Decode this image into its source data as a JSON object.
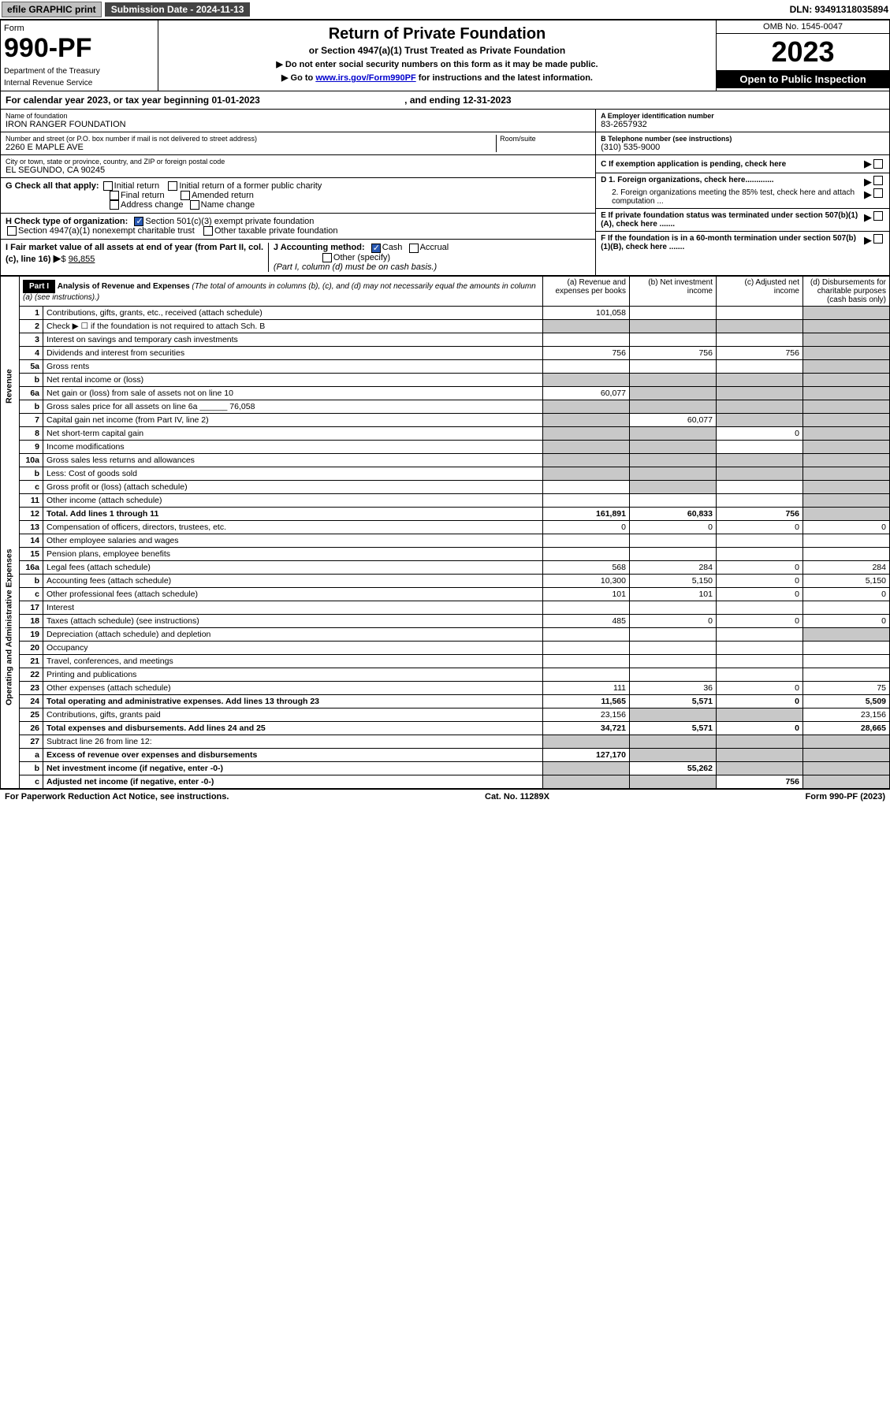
{
  "topbar": {
    "efile": "efile GRAPHIC print",
    "submission": "Submission Date - 2024-11-13",
    "dln": "DLN: 93491318035894"
  },
  "header": {
    "form_label": "Form",
    "form_num": "990-PF",
    "dept1": "Department of the Treasury",
    "dept2": "Internal Revenue Service",
    "title": "Return of Private Foundation",
    "subtitle": "or Section 4947(a)(1) Trust Treated as Private Foundation",
    "bullet1": "▶ Do not enter social security numbers on this form as it may be made public.",
    "bullet2_pre": "▶ Go to ",
    "bullet2_link": "www.irs.gov/Form990PF",
    "bullet2_post": " for instructions and the latest information.",
    "omb": "OMB No. 1545-0047",
    "year": "2023",
    "open": "Open to Public Inspection"
  },
  "cal_year": {
    "pre": "For calendar year 2023, or tax year beginning 01-01-2023",
    "end": ", and ending 12-31-2023"
  },
  "info": {
    "name_lbl": "Name of foundation",
    "name": "IRON RANGER FOUNDATION",
    "addr_lbl": "Number and street (or P.O. box number if mail is not delivered to street address)",
    "addr": "2260 E MAPLE AVE",
    "room_lbl": "Room/suite",
    "city_lbl": "City or town, state or province, country, and ZIP or foreign postal code",
    "city": "EL SEGUNDO, CA  90245",
    "ein_lbl": "A Employer identification number",
    "ein": "83-2657932",
    "phone_lbl": "B Telephone number (see instructions)",
    "phone": "(310) 535-9000",
    "c_lbl": "C If exemption application is pending, check here",
    "d1": "D 1. Foreign organizations, check here.............",
    "d2": "2. Foreign organizations meeting the 85% test, check here and attach computation ...",
    "e_lbl": "E If private foundation status was terminated under section 507(b)(1)(A), check here .......",
    "f_lbl": "F If the foundation is in a 60-month termination under section 507(b)(1)(B), check here .......",
    "g_lbl": "G Check all that apply:",
    "g_initial": "Initial return",
    "g_initial_former": "Initial return of a former public charity",
    "g_final": "Final return",
    "g_amended": "Amended return",
    "g_address": "Address change",
    "g_name": "Name change",
    "h_lbl": "H Check type of organization:",
    "h_501c3": "Section 501(c)(3) exempt private foundation",
    "h_4947": "Section 4947(a)(1) nonexempt charitable trust",
    "h_other": "Other taxable private foundation",
    "i_lbl": "I Fair market value of all assets at end of year (from Part II, col. (c), line 16)",
    "i_val": "96,855",
    "j_lbl": "J Accounting method:",
    "j_cash": "Cash",
    "j_accrual": "Accrual",
    "j_other": "Other (specify)",
    "j_note": "(Part I, column (d) must be on cash basis.)"
  },
  "part1": {
    "label": "Part I",
    "title": "Analysis of Revenue and Expenses",
    "note": "(The total of amounts in columns (b), (c), and (d) may not necessarily equal the amounts in column (a) (see instructions).)",
    "col_a": "(a) Revenue and expenses per books",
    "col_b": "(b) Net investment income",
    "col_c": "(c) Adjusted net income",
    "col_d": "(d) Disbursements for charitable purposes (cash basis only)",
    "side_rev": "Revenue",
    "side_exp": "Operating and Administrative Expenses"
  },
  "rows": [
    {
      "n": "1",
      "desc": "Contributions, gifts, grants, etc., received (attach schedule)",
      "a": "101,058",
      "b": "",
      "c": "",
      "d": "",
      "d_shade": true
    },
    {
      "n": "2",
      "desc": "Check ▶ ☐ if the foundation is not required to attach Sch. B",
      "a": "",
      "b": "",
      "c": "",
      "d": "",
      "shade_all": true
    },
    {
      "n": "3",
      "desc": "Interest on savings and temporary cash investments",
      "a": "",
      "b": "",
      "c": "",
      "d": "",
      "d_shade": true
    },
    {
      "n": "4",
      "desc": "Dividends and interest from securities",
      "a": "756",
      "b": "756",
      "c": "756",
      "d": "",
      "d_shade": true
    },
    {
      "n": "5a",
      "desc": "Gross rents",
      "a": "",
      "b": "",
      "c": "",
      "d": "",
      "d_shade": true
    },
    {
      "n": "b",
      "desc": "Net rental income or (loss)",
      "a": "",
      "b": "",
      "c": "",
      "d": "",
      "shade_all": true
    },
    {
      "n": "6a",
      "desc": "Net gain or (loss) from sale of assets not on line 10",
      "a": "60,077",
      "b": "",
      "c": "",
      "d": "",
      "bcd_shade": true
    },
    {
      "n": "b",
      "desc": "Gross sales price for all assets on line 6a ______ 76,058",
      "a": "",
      "b": "",
      "c": "",
      "d": "",
      "shade_all": true
    },
    {
      "n": "7",
      "desc": "Capital gain net income (from Part IV, line 2)",
      "a": "",
      "b": "60,077",
      "c": "",
      "d": "",
      "a_shade": true,
      "cd_shade": true
    },
    {
      "n": "8",
      "desc": "Net short-term capital gain",
      "a": "",
      "b": "",
      "c": "0",
      "d": "",
      "ab_shade": true,
      "d_shade": true
    },
    {
      "n": "9",
      "desc": "Income modifications",
      "a": "",
      "b": "",
      "c": "",
      "d": "",
      "ab_shade": true,
      "d_shade": true
    },
    {
      "n": "10a",
      "desc": "Gross sales less returns and allowances",
      "a": "",
      "b": "",
      "c": "",
      "d": "",
      "shade_all": true
    },
    {
      "n": "b",
      "desc": "Less: Cost of goods sold",
      "a": "",
      "b": "",
      "c": "",
      "d": "",
      "shade_all": true
    },
    {
      "n": "c",
      "desc": "Gross profit or (loss) (attach schedule)",
      "a": "",
      "b": "",
      "c": "",
      "d": "",
      "b_shade": true,
      "d_shade": true
    },
    {
      "n": "11",
      "desc": "Other income (attach schedule)",
      "a": "",
      "b": "",
      "c": "",
      "d": "",
      "d_shade": true
    },
    {
      "n": "12",
      "desc": "Total. Add lines 1 through 11",
      "a": "161,891",
      "b": "60,833",
      "c": "756",
      "d": "",
      "bold": true,
      "d_shade": true
    },
    {
      "n": "13",
      "desc": "Compensation of officers, directors, trustees, etc.",
      "a": "0",
      "b": "0",
      "c": "0",
      "d": "0"
    },
    {
      "n": "14",
      "desc": "Other employee salaries and wages",
      "a": "",
      "b": "",
      "c": "",
      "d": ""
    },
    {
      "n": "15",
      "desc": "Pension plans, employee benefits",
      "a": "",
      "b": "",
      "c": "",
      "d": ""
    },
    {
      "n": "16a",
      "desc": "Legal fees (attach schedule)",
      "a": "568",
      "b": "284",
      "c": "0",
      "d": "284"
    },
    {
      "n": "b",
      "desc": "Accounting fees (attach schedule)",
      "a": "10,300",
      "b": "5,150",
      "c": "0",
      "d": "5,150"
    },
    {
      "n": "c",
      "desc": "Other professional fees (attach schedule)",
      "a": "101",
      "b": "101",
      "c": "0",
      "d": "0"
    },
    {
      "n": "17",
      "desc": "Interest",
      "a": "",
      "b": "",
      "c": "",
      "d": ""
    },
    {
      "n": "18",
      "desc": "Taxes (attach schedule) (see instructions)",
      "a": "485",
      "b": "0",
      "c": "0",
      "d": "0"
    },
    {
      "n": "19",
      "desc": "Depreciation (attach schedule) and depletion",
      "a": "",
      "b": "",
      "c": "",
      "d": "",
      "d_shade": true
    },
    {
      "n": "20",
      "desc": "Occupancy",
      "a": "",
      "b": "",
      "c": "",
      "d": ""
    },
    {
      "n": "21",
      "desc": "Travel, conferences, and meetings",
      "a": "",
      "b": "",
      "c": "",
      "d": ""
    },
    {
      "n": "22",
      "desc": "Printing and publications",
      "a": "",
      "b": "",
      "c": "",
      "d": ""
    },
    {
      "n": "23",
      "desc": "Other expenses (attach schedule)",
      "a": "111",
      "b": "36",
      "c": "0",
      "d": "75"
    },
    {
      "n": "24",
      "desc": "Total operating and administrative expenses. Add lines 13 through 23",
      "a": "11,565",
      "b": "5,571",
      "c": "0",
      "d": "5,509",
      "bold": true
    },
    {
      "n": "25",
      "desc": "Contributions, gifts, grants paid",
      "a": "23,156",
      "b": "",
      "c": "",
      "d": "23,156",
      "bc_shade": true
    },
    {
      "n": "26",
      "desc": "Total expenses and disbursements. Add lines 24 and 25",
      "a": "34,721",
      "b": "5,571",
      "c": "0",
      "d": "28,665",
      "bold": true
    },
    {
      "n": "27",
      "desc": "Subtract line 26 from line 12:",
      "a": "",
      "b": "",
      "c": "",
      "d": "",
      "shade_all": true
    },
    {
      "n": "a",
      "desc": "Excess of revenue over expenses and disbursements",
      "a": "127,170",
      "b": "",
      "c": "",
      "d": "",
      "bold": true,
      "bcd_shade": true
    },
    {
      "n": "b",
      "desc": "Net investment income (if negative, enter -0-)",
      "a": "",
      "b": "55,262",
      "c": "",
      "d": "",
      "bold": true,
      "a_shade": true,
      "cd_shade": true
    },
    {
      "n": "c",
      "desc": "Adjusted net income (if negative, enter -0-)",
      "a": "",
      "b": "",
      "c": "756",
      "d": "",
      "bold": true,
      "ab_shade": true,
      "d_shade": true
    }
  ],
  "footer": {
    "left": "For Paperwork Reduction Act Notice, see instructions.",
    "mid": "Cat. No. 11289X",
    "right": "Form 990-PF (2023)"
  }
}
